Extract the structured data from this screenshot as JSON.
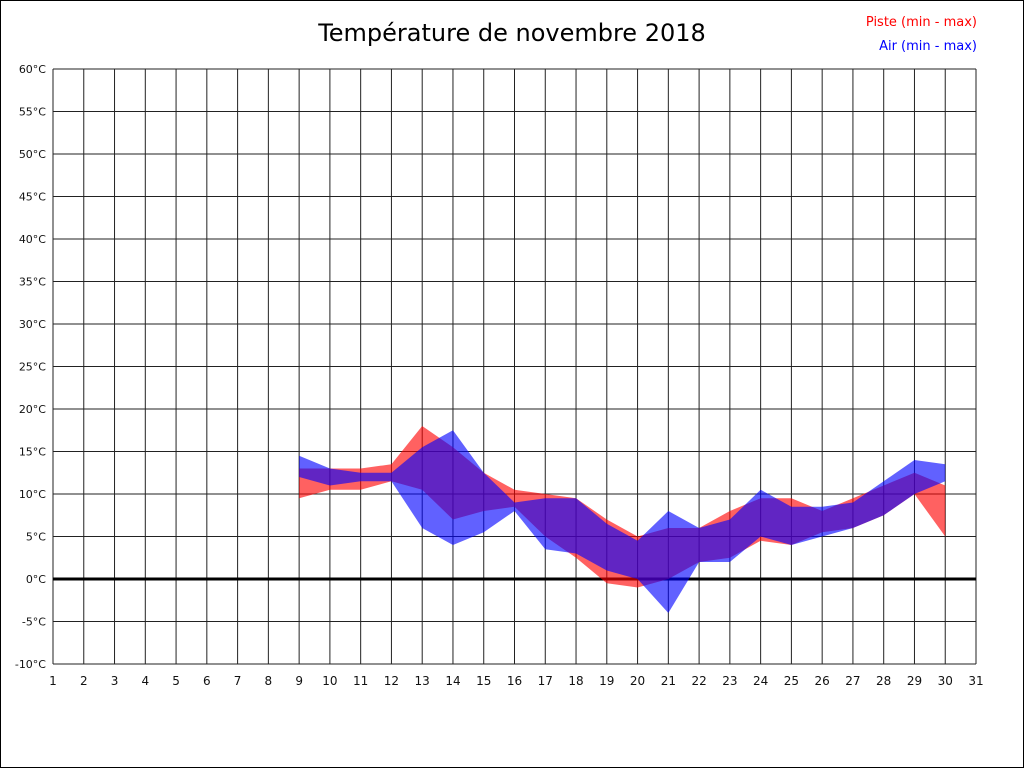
{
  "chart_data": {
    "type": "area",
    "title": "Température de novembre 2018",
    "xlabel": "",
    "ylabel": "",
    "xlim": [
      1,
      31
    ],
    "ylim": [
      -10,
      60
    ],
    "grid": true,
    "zero_line": 0,
    "x_tick_labels": [
      "1",
      "2",
      "3",
      "4",
      "5",
      "6",
      "7",
      "8",
      "9",
      "10",
      "11",
      "12",
      "13",
      "14",
      "15",
      "16",
      "17",
      "18",
      "19",
      "20",
      "21",
      "22",
      "23",
      "24",
      "25",
      "26",
      "27",
      "28",
      "29",
      "30",
      "31"
    ],
    "x_tick_values": [
      1,
      2,
      3,
      4,
      5,
      6,
      7,
      8,
      9,
      10,
      11,
      12,
      13,
      14,
      15,
      16,
      17,
      18,
      19,
      20,
      21,
      22,
      23,
      24,
      25,
      26,
      27,
      28,
      29,
      30,
      31
    ],
    "y_tick_labels": [
      "60°C",
      "55°C",
      "50°C",
      "45°C",
      "40°C",
      "35°C",
      "30°C",
      "25°C",
      "20°C",
      "15°C",
      "10°C",
      "5°C",
      "0°C",
      "-5°C",
      "-10°C"
    ],
    "y_tick_values": [
      60,
      55,
      50,
      45,
      40,
      35,
      30,
      25,
      20,
      15,
      10,
      5,
      0,
      -5,
      -10
    ],
    "days": [
      9,
      10,
      11,
      12,
      13,
      14,
      15,
      16,
      17,
      18,
      19,
      20,
      21,
      22,
      23,
      24,
      25,
      26,
      27,
      28,
      29,
      30
    ],
    "series": [
      {
        "name": "Piste (min - max)",
        "color": "#ff0000",
        "fill_opacity": 0.62,
        "min": [
          9.5,
          10.5,
          10.5,
          11.5,
          10.5,
          7,
          8,
          8.5,
          5,
          2.5,
          -0.5,
          -1,
          0,
          2,
          2.5,
          4.5,
          4,
          5.5,
          6,
          7.5,
          10,
          5
        ],
        "max": [
          13,
          13,
          13,
          13.5,
          18,
          15.5,
          12.5,
          10.5,
          10,
          9.5,
          7,
          5,
          6,
          6,
          8,
          9.5,
          9.5,
          8,
          9.5,
          11,
          12.5,
          11
        ]
      },
      {
        "name": "Air (min - max)",
        "color": "#0000ff",
        "fill_opacity": 0.62,
        "min": [
          12,
          11,
          11.5,
          11.5,
          6,
          4,
          5.5,
          8,
          3.5,
          3,
          1,
          0,
          -4,
          2,
          2,
          5,
          4,
          5,
          6,
          7.5,
          10,
          11.5
        ],
        "max": [
          14.5,
          13,
          12.5,
          12.5,
          15.5,
          17.5,
          12.5,
          9,
          9.5,
          9.5,
          6.5,
          4.5,
          8,
          6,
          7,
          10.5,
          8.5,
          8.5,
          9,
          11.5,
          14,
          13.5
        ]
      }
    ],
    "legend_position": "top-right"
  }
}
